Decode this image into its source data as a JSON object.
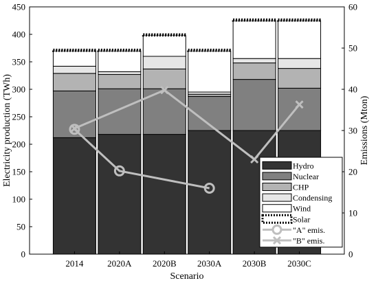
{
  "chart_data": {
    "type": "bar",
    "xlabel": "Scenario",
    "ylabel_left": "Electricity production (TWh)",
    "ylabel_right": "Emissions (Mton)",
    "ylim_left": [
      0,
      450
    ],
    "ylim_right": [
      0,
      60
    ],
    "yticks_left": [
      "0",
      "50",
      "100",
      "150",
      "200",
      "250",
      "300",
      "350",
      "400",
      "450"
    ],
    "yticks_right": [
      "0",
      "10",
      "20",
      "30",
      "40",
      "50",
      "60"
    ],
    "grid": false,
    "legend_position": "bottom-right",
    "categories": [
      "2014",
      "2020A",
      "2020B",
      "2030A",
      "2030B",
      "2030C"
    ],
    "series": [
      {
        "name": "Hydro",
        "color": "#333333",
        "values": [
          212,
          218,
          218,
          225,
          225,
          225
        ]
      },
      {
        "name": "Nuclear",
        "color": "#808080",
        "values": [
          85,
          83,
          83,
          62,
          93,
          77
        ]
      },
      {
        "name": "CHP",
        "color": "#b3b3b3",
        "values": [
          32,
          26,
          36,
          4,
          30,
          36
        ]
      },
      {
        "name": "Condensing",
        "color": "#e6e6e6",
        "values": [
          13,
          5,
          23,
          4,
          8,
          18
        ]
      },
      {
        "name": "Wind",
        "color": "#ffffff",
        "values": [
          28,
          38,
          38,
          75,
          69,
          69
        ]
      },
      {
        "name": "Solar",
        "color": "#ffffff",
        "values": [
          2,
          2,
          2,
          2,
          2,
          2
        ]
      }
    ],
    "emissions": [
      {
        "name": "\"A\" emis.",
        "marker": "circle",
        "color": "#bfbfbf",
        "points": [
          {
            "x": "2014",
            "y": 30.3
          },
          {
            "x": "2020A",
            "y": 20.2
          },
          {
            "x": "2030A",
            "y": 16.0
          }
        ]
      },
      {
        "name": "\"B\" emis.",
        "marker": "x",
        "color": "#bfbfbf",
        "points": [
          {
            "x": "2014",
            "y": 30.5
          },
          {
            "x": "2020B",
            "y": 39.8
          },
          {
            "x": "2030B",
            "y": 23.0
          },
          {
            "x": "2030C",
            "y": 36.3
          }
        ]
      }
    ]
  }
}
